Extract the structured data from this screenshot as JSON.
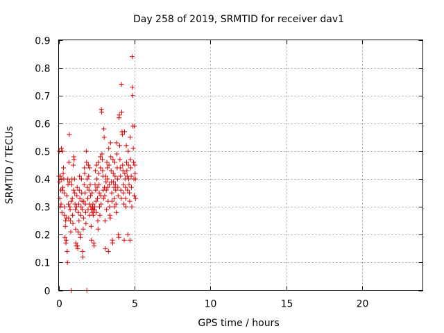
{
  "chart_data": {
    "type": "scatter",
    "title": "Day 258 of 2019, SRMTID for receiver dav1",
    "xlabel": "GPS time / hours",
    "ylabel": "SRMTID / TECUs",
    "xlim": [
      0,
      24
    ],
    "ylim": [
      0,
      0.9
    ],
    "xticks": [
      0,
      5,
      10,
      15,
      20
    ],
    "xtick_labels": [
      "0",
      "5",
      "10",
      "15",
      "20"
    ],
    "yticks": [
      0,
      0.1,
      0.2,
      0.3,
      0.4,
      0.5,
      0.6,
      0.7,
      0.8,
      0.9
    ],
    "ytick_labels": [
      "0",
      "0.1",
      "0.2",
      "0.3",
      "0.4",
      "0.5",
      "0.6",
      "0.7",
      "0.8",
      "0.9"
    ],
    "grid": true,
    "marker": "+",
    "color": "#e00000",
    "series": [
      {
        "name": "dav1",
        "points": [
          [
            0.02,
            0.41
          ],
          [
            0.04,
            0.5
          ],
          [
            0.06,
            0.39
          ],
          [
            0.08,
            0.33
          ],
          [
            0.1,
            0.3
          ],
          [
            0.12,
            0.41
          ],
          [
            0.14,
            0.36
          ],
          [
            0.16,
            0.31
          ],
          [
            0.18,
            0.51
          ],
          [
            0.2,
            0.4
          ],
          [
            0.22,
            0.28
          ],
          [
            0.24,
            0.36
          ],
          [
            0.26,
            0.5
          ],
          [
            0.28,
            0.37
          ],
          [
            0.3,
            0.42
          ],
          [
            0.32,
            0.44
          ],
          [
            0.34,
            0.4
          ],
          [
            0.36,
            0.35
          ],
          [
            0.38,
            0.3
          ],
          [
            0.4,
            0.27
          ],
          [
            0.42,
            0.19
          ],
          [
            0.44,
            0.23
          ],
          [
            0.46,
            0.25
          ],
          [
            0.48,
            0.17
          ],
          [
            0.5,
            0.18
          ],
          [
            0.52,
            0.26
          ],
          [
            0.54,
            0.34
          ],
          [
            0.56,
            0.14
          ],
          [
            0.58,
            0.1
          ],
          [
            0.6,
            0.4
          ],
          [
            0.62,
            0.38
          ],
          [
            0.64,
            0.31
          ],
          [
            0.66,
            0.26
          ],
          [
            0.68,
            0.46
          ],
          [
            0.7,
            0.56
          ],
          [
            0.72,
            0.39
          ],
          [
            0.74,
            0.3
          ],
          [
            0.76,
            0.29
          ],
          [
            0.78,
            0.25
          ],
          [
            0.8,
            0.21
          ],
          [
            0.82,
            0.32
          ],
          [
            0.84,
            0.0
          ],
          [
            0.86,
            0.38
          ],
          [
            0.88,
            0.4
          ],
          [
            0.9,
            0.33
          ],
          [
            0.92,
            0.27
          ],
          [
            0.94,
            0.24
          ],
          [
            0.96,
            0.45
          ],
          [
            0.98,
            0.36
          ],
          [
            1.0,
            0.48
          ],
          [
            1.02,
            0.47
          ],
          [
            1.04,
            0.4
          ],
          [
            1.06,
            0.35
          ],
          [
            1.08,
            0.31
          ],
          [
            1.1,
            0.29
          ],
          [
            1.12,
            0.22
          ],
          [
            1.14,
            0.17
          ],
          [
            1.16,
            0.16
          ],
          [
            1.18,
            0.3
          ],
          [
            1.2,
            0.34
          ],
          [
            1.22,
            0.37
          ],
          [
            1.24,
            0.16
          ],
          [
            1.26,
            0.15
          ],
          [
            1.28,
            0.21
          ],
          [
            1.3,
            0.28
          ],
          [
            1.32,
            0.31
          ],
          [
            1.34,
            0.25
          ],
          [
            1.36,
            0.36
          ],
          [
            1.38,
            0.41
          ],
          [
            1.4,
            0.33
          ],
          [
            1.42,
            0.2
          ],
          [
            1.44,
            0.19
          ],
          [
            1.46,
            0.27
          ],
          [
            1.48,
            0.3
          ],
          [
            1.5,
            0.4
          ],
          [
            1.52,
            0.35
          ],
          [
            1.54,
            0.32
          ],
          [
            1.56,
            0.29
          ],
          [
            1.58,
            0.14
          ],
          [
            1.6,
            0.12
          ],
          [
            1.62,
            0.22
          ],
          [
            1.64,
            0.26
          ],
          [
            1.66,
            0.32
          ],
          [
            1.68,
            0.38
          ],
          [
            1.7,
            0.44
          ],
          [
            1.72,
            0.42
          ],
          [
            1.74,
            0.35
          ],
          [
            1.76,
            0.31
          ],
          [
            1.78,
            0.28
          ],
          [
            1.8,
            0.24
          ],
          [
            1.82,
            0.5
          ],
          [
            1.84,
            0.46
          ],
          [
            1.86,
            0.0
          ],
          [
            1.88,
            0.4
          ],
          [
            1.9,
            0.37
          ],
          [
            1.92,
            0.33
          ],
          [
            1.94,
            0.29
          ],
          [
            1.96,
            0.45
          ],
          [
            1.98,
            0.41
          ],
          [
            2.0,
            0.36
          ],
          [
            2.02,
            0.31
          ],
          [
            2.04,
            0.27
          ],
          [
            2.06,
            0.44
          ],
          [
            2.08,
            0.38
          ],
          [
            2.1,
            0.34
          ],
          [
            2.12,
            0.3
          ],
          [
            2.14,
            0.23
          ],
          [
            2.16,
            0.18
          ],
          [
            2.18,
            0.29
          ],
          [
            2.2,
            0.35
          ],
          [
            2.22,
            0.28
          ],
          [
            2.24,
            0.3
          ],
          [
            2.26,
            0.31
          ],
          [
            2.28,
            0.27
          ],
          [
            2.3,
            0.29
          ],
          [
            2.32,
            0.17
          ],
          [
            2.34,
            0.16
          ],
          [
            2.36,
            0.29
          ],
          [
            2.38,
            0.3
          ],
          [
            2.4,
            0.38
          ],
          [
            2.42,
            0.43
          ],
          [
            2.44,
            0.36
          ],
          [
            2.46,
            0.32
          ],
          [
            2.48,
            0.28
          ],
          [
            2.5,
            0.45
          ],
          [
            2.52,
            0.4
          ],
          [
            2.54,
            0.37
          ],
          [
            2.56,
            0.33
          ],
          [
            2.58,
            0.25
          ],
          [
            2.6,
            0.22
          ],
          [
            2.62,
            0.46
          ],
          [
            2.64,
            0.42
          ],
          [
            2.66,
            0.38
          ],
          [
            2.68,
            0.35
          ],
          [
            2.7,
            0.3
          ],
          [
            2.72,
            0.27
          ],
          [
            2.74,
            0.48
          ],
          [
            2.76,
            0.44
          ],
          [
            2.78,
            0.34
          ],
          [
            2.8,
            0.31
          ],
          [
            2.82,
            0.65
          ],
          [
            2.84,
            0.64
          ],
          [
            2.86,
            0.49
          ],
          [
            2.88,
            0.47
          ],
          [
            2.9,
            0.43
          ],
          [
            2.92,
            0.41
          ],
          [
            2.94,
            0.36
          ],
          [
            2.96,
            0.33
          ],
          [
            2.98,
            0.58
          ],
          [
            3.0,
            0.55
          ],
          [
            3.02,
            0.37
          ],
          [
            3.04,
            0.34
          ],
          [
            3.06,
            0.25
          ],
          [
            3.08,
            0.15
          ],
          [
            3.1,
            0.41
          ],
          [
            3.12,
            0.39
          ],
          [
            3.14,
            0.36
          ],
          [
            3.16,
            0.29
          ],
          [
            3.18,
            0.46
          ],
          [
            3.2,
            0.44
          ],
          [
            3.22,
            0.4
          ],
          [
            3.24,
            0.37
          ],
          [
            3.26,
            0.32
          ],
          [
            3.28,
            0.14
          ],
          [
            3.3,
            0.51
          ],
          [
            3.32,
            0.45
          ],
          [
            3.34,
            0.38
          ],
          [
            3.36,
            0.3
          ],
          [
            3.38,
            0.27
          ],
          [
            3.4,
            0.26
          ],
          [
            3.42,
            0.53
          ],
          [
            3.44,
            0.48
          ],
          [
            3.46,
            0.43
          ],
          [
            3.48,
            0.39
          ],
          [
            3.5,
            0.35
          ],
          [
            3.52,
            0.32
          ],
          [
            3.54,
            0.18
          ],
          [
            3.56,
            0.17
          ],
          [
            3.58,
            0.47
          ],
          [
            3.6,
            0.42
          ],
          [
            3.62,
            0.39
          ],
          [
            3.64,
            0.37
          ],
          [
            3.66,
            0.33
          ],
          [
            3.68,
            0.3
          ],
          [
            3.7,
            0.46
          ],
          [
            3.72,
            0.41
          ],
          [
            3.74,
            0.38
          ],
          [
            3.76,
            0.36
          ],
          [
            3.78,
            0.31
          ],
          [
            3.8,
            0.28
          ],
          [
            3.82,
            0.53
          ],
          [
            3.84,
            0.49
          ],
          [
            3.86,
            0.44
          ],
          [
            3.88,
            0.4
          ],
          [
            3.9,
            0.37
          ],
          [
            3.92,
            0.34
          ],
          [
            3.94,
            0.2
          ],
          [
            3.96,
            0.19
          ],
          [
            3.98,
            0.62
          ],
          [
            4.0,
            0.63
          ],
          [
            4.02,
            0.52
          ],
          [
            4.04,
            0.47
          ],
          [
            4.06,
            0.44
          ],
          [
            4.08,
            0.41
          ],
          [
            4.1,
            0.36
          ],
          [
            4.12,
            0.33
          ],
          [
            4.14,
            0.74
          ],
          [
            4.16,
            0.64
          ],
          [
            4.18,
            0.57
          ],
          [
            4.2,
            0.56
          ],
          [
            4.22,
            0.45
          ],
          [
            4.24,
            0.43
          ],
          [
            4.26,
            0.38
          ],
          [
            4.28,
            0.35
          ],
          [
            4.3,
            0.31
          ],
          [
            4.32,
            0.18
          ],
          [
            4.34,
            0.57
          ],
          [
            4.36,
            0.42
          ],
          [
            4.38,
            0.4
          ],
          [
            4.4,
            0.37
          ],
          [
            4.42,
            0.33
          ],
          [
            4.44,
            0.3
          ],
          [
            4.46,
            0.52
          ],
          [
            4.48,
            0.46
          ],
          [
            4.5,
            0.43
          ],
          [
            4.52,
            0.41
          ],
          [
            4.54,
            0.36
          ],
          [
            4.56,
            0.2
          ],
          [
            4.58,
            0.5
          ],
          [
            4.6,
            0.45
          ],
          [
            4.62,
            0.4
          ],
          [
            4.64,
            0.38
          ],
          [
            4.66,
            0.35
          ],
          [
            4.68,
            0.32
          ],
          [
            4.7,
            0.18
          ],
          [
            4.72,
            0.55
          ],
          [
            4.74,
            0.47
          ],
          [
            4.76,
            0.44
          ],
          [
            4.78,
            0.41
          ],
          [
            4.8,
            0.37
          ],
          [
            4.82,
            0.3
          ],
          [
            4.84,
            0.84
          ],
          [
            4.86,
            0.73
          ],
          [
            4.88,
            0.7
          ],
          [
            4.9,
            0.59
          ],
          [
            4.92,
            0.51
          ],
          [
            4.94,
            0.46
          ],
          [
            4.96,
            0.4
          ],
          [
            4.98,
            0.34
          ],
          [
            5.0,
            0.59
          ],
          [
            5.02,
            0.45
          ],
          [
            5.04,
            0.42
          ],
          [
            5.06,
            0.4
          ],
          [
            5.08,
            0.33
          ]
        ]
      }
    ]
  }
}
